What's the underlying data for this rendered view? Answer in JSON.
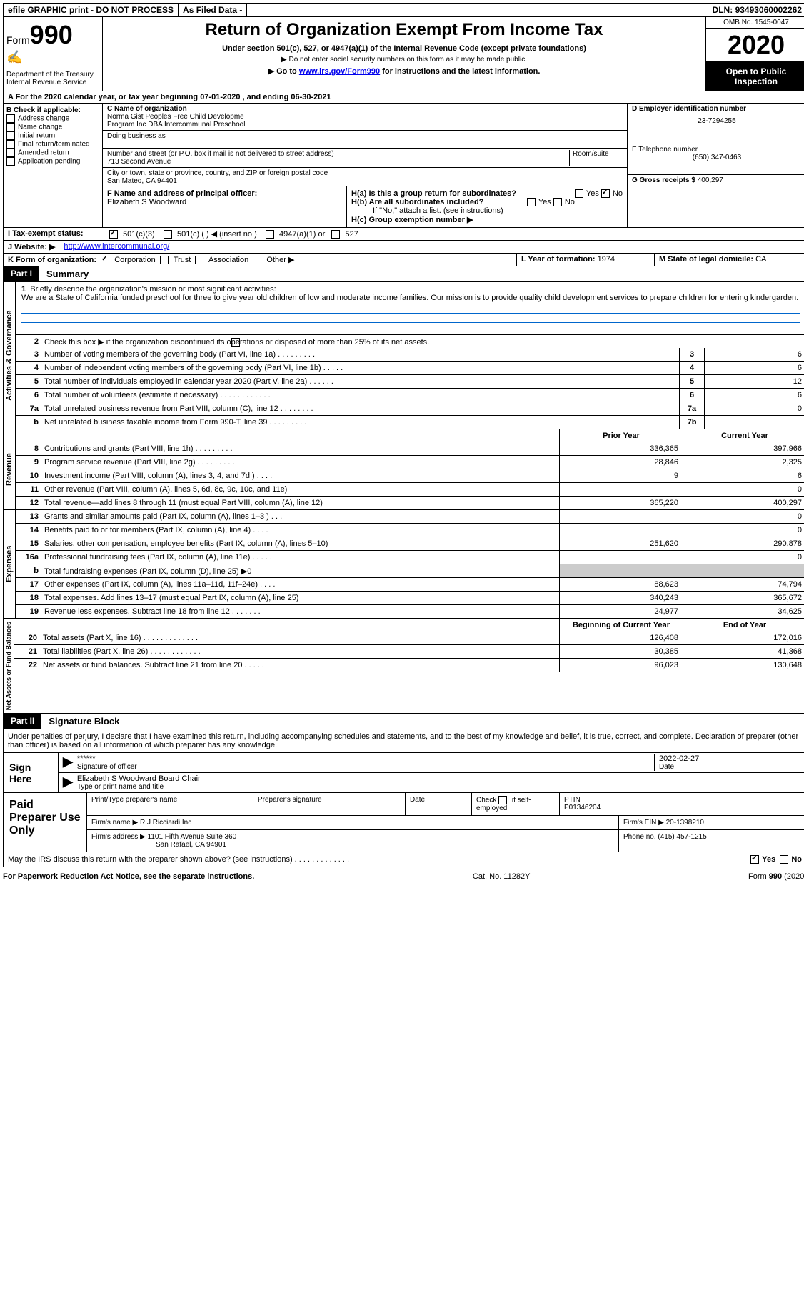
{
  "topbar": {
    "efile": "efile GRAPHIC print - DO NOT PROCESS",
    "filed": "As Filed Data -",
    "dln_label": "DLN:",
    "dln": "93493060002262"
  },
  "header": {
    "form_word": "Form",
    "form_num": "990",
    "dept": "Department of the Treasury",
    "irs": "Internal Revenue Service",
    "title": "Return of Organization Exempt From Income Tax",
    "sub1": "Under section 501(c), 527, or 4947(a)(1) of the Internal Revenue Code (except private foundations)",
    "sub2": "▶ Do not enter social security numbers on this form as it may be made public.",
    "sub3_pre": "▶ Go to ",
    "sub3_link": "www.irs.gov/Form990",
    "sub3_post": " for instructions and the latest information.",
    "omb": "OMB No. 1545-0047",
    "year": "2020",
    "open": "Open to Public Inspection"
  },
  "row_a": "A  For the 2020 calendar year, or tax year beginning 07-01-2020  , and ending 06-30-2021",
  "col_b": {
    "label": "B Check if applicable:",
    "items": [
      "Address change",
      "Name change",
      "Initial return",
      "Final return/terminated",
      "Amended return",
      "Application pending"
    ]
  },
  "col_c": {
    "name_lbl": "C Name of organization",
    "name1": "Norma Gist Peoples Free Child Developme",
    "name2": "Program Inc DBA Intercommunal Preschool",
    "dba_lbl": "Doing business as",
    "addr_lbl": "Number and street (or P.O. box if mail is not delivered to street address)",
    "room_lbl": "Room/suite",
    "addr": "713 Second Avenue",
    "city_lbl": "City or town, state or province, country, and ZIP or foreign postal code",
    "city": "San Mateo, CA  94401",
    "f_lbl": "F  Name and address of principal officer:",
    "f_name": "Elizabeth S Woodward"
  },
  "col_d": {
    "d_lbl": "D Employer identification number",
    "ein": "23-7294255",
    "e_lbl": "E Telephone number",
    "phone": "(650) 347-0463",
    "g_lbl": "G Gross receipts $",
    "g_val": "400,297"
  },
  "h": {
    "ha": "H(a)  Is this a group return for subordinates?",
    "hb": "H(b)  Are all subordinates included?",
    "hb_note": "If \"No,\" attach a list. (see instructions)",
    "hc": "H(c)  Group exemption number ▶",
    "yes": "Yes",
    "no": "No"
  },
  "i": {
    "label": "I  Tax-exempt status:",
    "o1": "501(c)(3)",
    "o2": "501(c) (  ) ◀ (insert no.)",
    "o3": "4947(a)(1) or",
    "o4": "527"
  },
  "j": {
    "label": "J  Website: ▶",
    "url": "http://www.intercommunal.org/"
  },
  "k": {
    "label": "K Form of organization:",
    "o1": "Corporation",
    "o2": "Trust",
    "o3": "Association",
    "o4": "Other ▶"
  },
  "l": {
    "label": "L Year of formation:",
    "val": "1974"
  },
  "m": {
    "label": "M State of legal domicile:",
    "val": "CA"
  },
  "part1": {
    "tag": "Part I",
    "title": "Summary"
  },
  "briefly": {
    "num": "1",
    "lbl": "Briefly describe the organization's mission or most significant activities:",
    "text": "We are a State of California funded preschool for three to give year old children of low and moderate income families. Our mission is to provide quality child development services to prepare children for entering kindergarden."
  },
  "line2": "Check this box ▶      if the organization discontinued its operations or disposed of more than 25% of its net assets.",
  "gov_lines": [
    {
      "n": "3",
      "t": "Number of voting members of the governing body (Part VI, line 1a)  .  .  .  .  .  .  .  .  .",
      "b": "3",
      "v": "6"
    },
    {
      "n": "4",
      "t": "Number of independent voting members of the governing body (Part VI, line 1b)  .  .  .  .  .",
      "b": "4",
      "v": "6"
    },
    {
      "n": "5",
      "t": "Total number of individuals employed in calendar year 2020 (Part V, line 2a)  .  .  .  .  .  .",
      "b": "5",
      "v": "12"
    },
    {
      "n": "6",
      "t": "Total number of volunteers (estimate if necessary)  .  .  .  .  .  .  .  .  .  .  .  .",
      "b": "6",
      "v": "6"
    },
    {
      "n": "7a",
      "t": "Total unrelated business revenue from Part VIII, column (C), line 12  .  .  .  .  .  .  .  .",
      "b": "7a",
      "v": "0"
    },
    {
      "n": "b",
      "t": "Net unrelated business taxable income from Form 990-T, line 39  .  .  .  .  .  .  .  .  .",
      "b": "7b",
      "v": ""
    }
  ],
  "col_headers": {
    "prior": "Prior Year",
    "current": "Current Year"
  },
  "rev_lines": [
    {
      "n": "8",
      "t": "Contributions and grants (Part VIII, line 1h)  .  .  .  .  .  .  .  .  .",
      "p": "336,365",
      "c": "397,966"
    },
    {
      "n": "9",
      "t": "Program service revenue (Part VIII, line 2g)  .  .  .  .  .  .  .  .  .",
      "p": "28,846",
      "c": "2,325"
    },
    {
      "n": "10",
      "t": "Investment income (Part VIII, column (A), lines 3, 4, and 7d )  .  .  .  .",
      "p": "9",
      "c": "6"
    },
    {
      "n": "11",
      "t": "Other revenue (Part VIII, column (A), lines 5, 6d, 8c, 9c, 10c, and 11e)",
      "p": "",
      "c": "0"
    },
    {
      "n": "12",
      "t": "Total revenue—add lines 8 through 11 (must equal Part VIII, column (A), line 12)",
      "p": "365,220",
      "c": "400,297"
    }
  ],
  "exp_lines": [
    {
      "n": "13",
      "t": "Grants and similar amounts paid (Part IX, column (A), lines 1–3 )  .  .  .",
      "p": "",
      "c": "0"
    },
    {
      "n": "14",
      "t": "Benefits paid to or for members (Part IX, column (A), line 4)  .  .  .  .",
      "p": "",
      "c": "0"
    },
    {
      "n": "15",
      "t": "Salaries, other compensation, employee benefits (Part IX, column (A), lines 5–10)",
      "p": "251,620",
      "c": "290,878"
    },
    {
      "n": "16a",
      "t": "Professional fundraising fees (Part IX, column (A), line 11e)  .  .  .  .  .",
      "p": "",
      "c": "0"
    },
    {
      "n": "b",
      "t": "Total fundraising expenses (Part IX, column (D), line 25) ▶0",
      "p": "—",
      "c": "—"
    },
    {
      "n": "17",
      "t": "Other expenses (Part IX, column (A), lines 11a–11d, 11f–24e)  .  .  .  .",
      "p": "88,623",
      "c": "74,794"
    },
    {
      "n": "18",
      "t": "Total expenses. Add lines 13–17 (must equal Part IX, column (A), line 25)",
      "p": "340,243",
      "c": "365,672"
    },
    {
      "n": "19",
      "t": "Revenue less expenses. Subtract line 18 from line 12  .  .  .  .  .  .  .",
      "p": "24,977",
      "c": "34,625"
    }
  ],
  "net_headers": {
    "beg": "Beginning of Current Year",
    "end": "End of Year"
  },
  "net_lines": [
    {
      "n": "20",
      "t": "Total assets (Part X, line 16)  .  .  .  .  .  .  .  .  .  .  .  .  .",
      "p": "126,408",
      "c": "172,016"
    },
    {
      "n": "21",
      "t": "Total liabilities (Part X, line 26)  .  .  .  .  .  .  .  .  .  .  .  .",
      "p": "30,385",
      "c": "41,368"
    },
    {
      "n": "22",
      "t": "Net assets or fund balances. Subtract line 21 from line 20  .  .  .  .  .",
      "p": "96,023",
      "c": "130,648"
    }
  ],
  "vlabels": {
    "gov": "Activities & Governance",
    "rev": "Revenue",
    "exp": "Expenses",
    "net": "Net Assets or Fund Balances"
  },
  "part2": {
    "tag": "Part II",
    "title": "Signature Block"
  },
  "perjury": "Under penalties of perjury, I declare that I have examined this return, including accompanying schedules and statements, and to the best of my knowledge and belief, it is true, correct, and complete. Declaration of preparer (other than officer) is based on all information of which preparer has any knowledge.",
  "sign": {
    "here": "Sign Here",
    "stars": "******",
    "sig_lbl": "Signature of officer",
    "date": "2022-02-27",
    "date_lbl": "Date",
    "name": "Elizabeth S Woodward  Board Chair",
    "name_lbl": "Type or print name and title"
  },
  "prep": {
    "left": "Paid Preparer Use Only",
    "h1": "Print/Type preparer's name",
    "h2": "Preparer's signature",
    "h3": "Date",
    "h4_pre": "Check",
    "h4_post": "if self-employed",
    "h5": "PTIN",
    "ptin": "P01346204",
    "firm_lbl": "Firm's name    ▶",
    "firm": "R J Ricciardi Inc",
    "ein_lbl": "Firm's EIN ▶",
    "ein": "20-1398210",
    "addr_lbl": "Firm's address ▶",
    "addr1": "1101 Fifth Avenue Suite 360",
    "addr2": "San Rafael, CA  94901",
    "phone_lbl": "Phone no.",
    "phone": "(415) 457-1215"
  },
  "discuss": "May the IRS discuss this return with the preparer shown above? (see instructions)  .  .  .  .  .  .  .  .  .  .  .  .  .",
  "footer": {
    "left": "For Paperwork Reduction Act Notice, see the separate instructions.",
    "mid": "Cat. No. 11282Y",
    "right_pre": "Form ",
    "right_b": "990",
    "right_post": " (2020)"
  }
}
